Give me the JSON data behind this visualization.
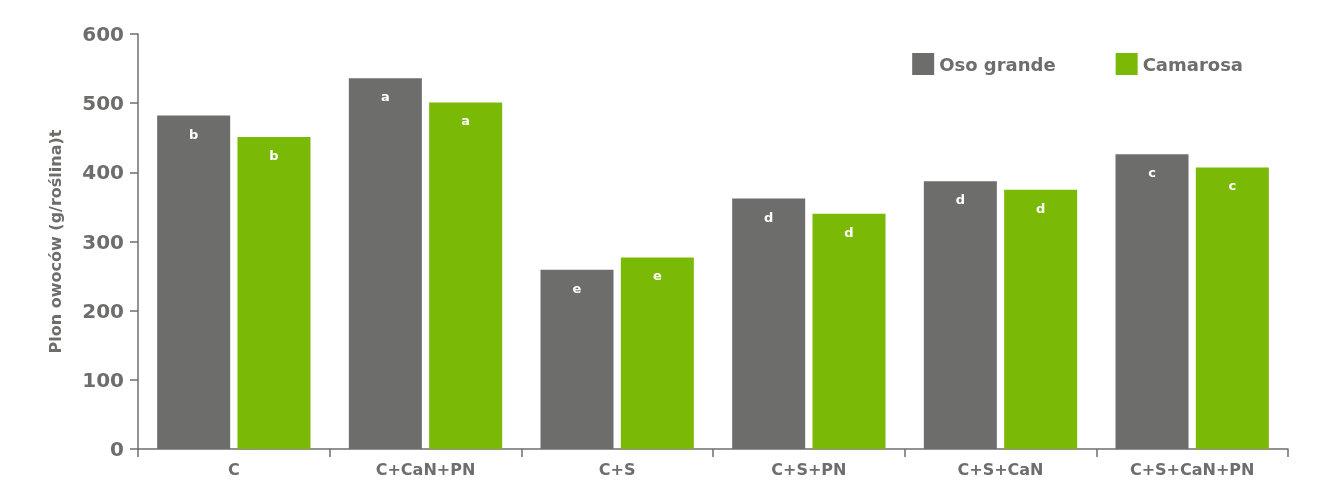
{
  "chart_data": {
    "type": "bar",
    "ylabel": "Plon owoców (g/roślina)t",
    "categories": [
      "C",
      "C+CaN+PN",
      "C+S",
      "C+S+PN",
      "C+S+CaN",
      "C+S+CaN+PN"
    ],
    "series": [
      {
        "name": "Oso grande",
        "color": "#6d6e6c",
        "values": [
          482,
          536,
          259,
          362,
          387,
          426
        ],
        "value_labels": [
          "b",
          "a",
          "e",
          "d",
          "d",
          "c"
        ]
      },
      {
        "name": "Camarosa",
        "color": "#7aba07",
        "values": [
          451,
          501,
          277,
          340,
          375,
          407
        ],
        "value_labels": [
          "b",
          "a",
          "e",
          "d",
          "d",
          "c"
        ]
      }
    ],
    "ylim": [
      0,
      600
    ],
    "yticks": [
      0,
      100,
      200,
      300,
      400,
      500,
      600
    ],
    "grid": false,
    "legend": "top right"
  }
}
